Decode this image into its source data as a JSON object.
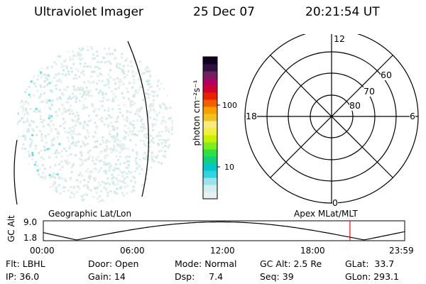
{
  "header": {
    "instrument": "Ultraviolet Imager",
    "date": "25 Dec 07",
    "time": "20:21:54 UT"
  },
  "colorbar": {
    "unit_label": "photon cm⁻²s⁻¹",
    "ticks": [
      "100",
      "10"
    ],
    "colors": [
      "#e9f1f0",
      "#d0eeee",
      "#9ce2ea",
      "#30d3e0",
      "#00c8ca",
      "#10d080",
      "#30e040",
      "#80ec20",
      "#c8f000",
      "#f0f040",
      "#f8e880",
      "#f0c020",
      "#f8a000",
      "#f06000",
      "#e82000",
      "#d00030",
      "#b00060",
      "#702060",
      "#301040",
      "#100020"
    ]
  },
  "polar_plot": {
    "mlt_labels": {
      "top": "12",
      "bottom": "0",
      "left": "18",
      "right": "6"
    },
    "lat_labels": [
      "60",
      "70",
      "80"
    ]
  },
  "timeline": {
    "ylabel": "GC Alt",
    "yticks": [
      "9.0",
      "1.8"
    ],
    "left_label": "Geographic Lat/Lon",
    "right_label": "Apex MLat/MLT",
    "xticks": [
      "00:00",
      "06:00",
      "12:00",
      "18:00",
      "23:59"
    ],
    "marker_time_hours": 20.365,
    "marker_color": "#e01010"
  },
  "info": {
    "filter": "Flt: LBHL",
    "door": "Door: Open",
    "mode": "Mode: Normal",
    "gc_alt": "GC Alt: 2.5 Re",
    "glat": "GLat:  33.7",
    "ip": "IP: 36.0",
    "gain": "Gain: 14",
    "dsp": "Dsp:     7.4",
    "seq": "Seq: 39",
    "glon": "GLon: 293.1"
  }
}
